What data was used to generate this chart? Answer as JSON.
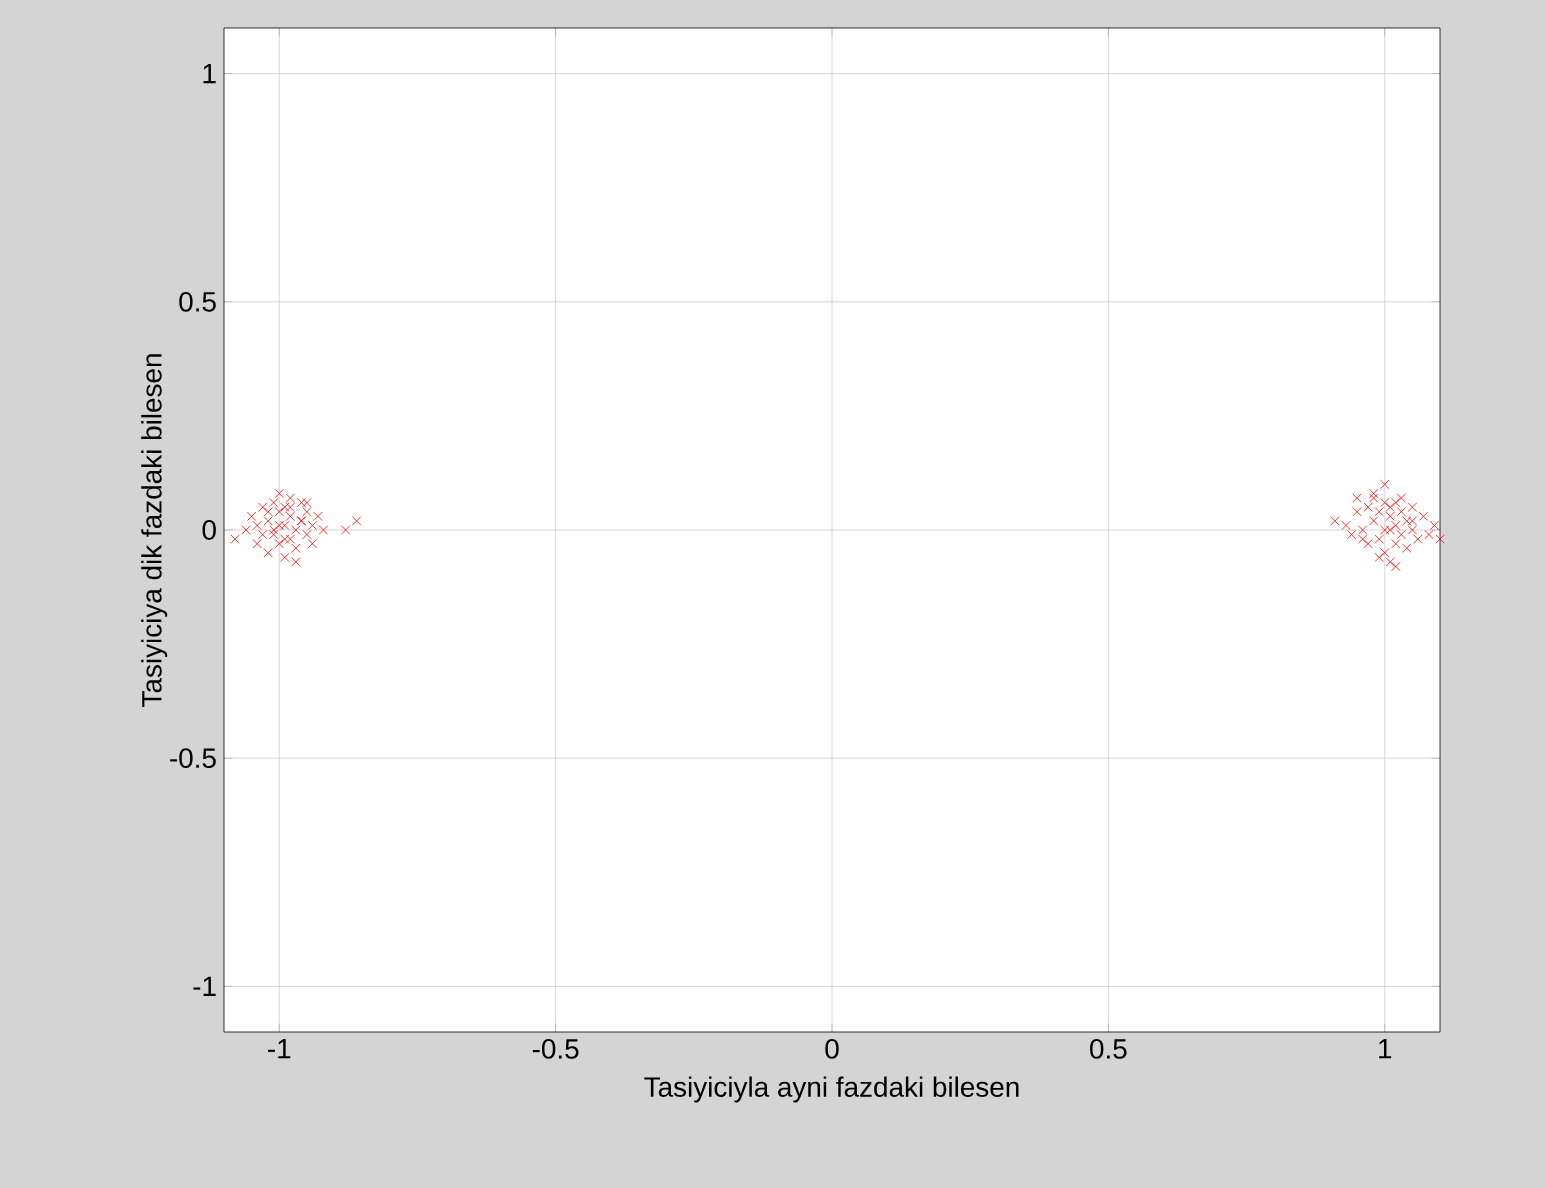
{
  "chart_data": {
    "type": "scatter",
    "xlabel": "Tasiyiciyla ayni fazdaki bilesen",
    "ylabel": "Tasiyiciya dik fazdaki bilesen",
    "xlim": [
      -1.1,
      1.1
    ],
    "ylim": [
      -1.1,
      1.1
    ],
    "xticks": [
      -1,
      -0.5,
      0,
      0.5,
      1
    ],
    "yticks": [
      -1,
      -0.5,
      0,
      0.5,
      1
    ],
    "grid": true,
    "marker": "cross",
    "series": [
      {
        "color": "#ff0000",
        "x": [
          -1.08,
          -1.06,
          -1.05,
          -1.04,
          -1.03,
          -1.03,
          -1.02,
          -1.02,
          -1.01,
          -1.01,
          -1.0,
          -1.0,
          -1.0,
          -0.99,
          -0.99,
          -0.99,
          -0.98,
          -0.98,
          -0.98,
          -0.97,
          -0.97,
          -0.96,
          -0.96,
          -0.95,
          -0.95,
          -0.94,
          -0.94,
          -0.93,
          -0.92,
          -1.0,
          -0.97,
          -0.99,
          -1.02,
          -0.96,
          -0.88,
          -0.86,
          -1.01,
          -0.98,
          -1.04,
          -0.95
        ],
        "values": [
          -0.02,
          0.0,
          0.03,
          -0.03,
          0.05,
          -0.01,
          0.02,
          -0.05,
          0.06,
          0.0,
          -0.03,
          0.04,
          0.08,
          0.01,
          -0.06,
          0.05,
          -0.02,
          0.03,
          0.07,
          0.0,
          -0.04,
          0.02,
          0.06,
          -0.01,
          0.04,
          0.01,
          -0.03,
          0.03,
          0.0,
          0.01,
          -0.07,
          -0.02,
          0.04,
          0.02,
          0.0,
          0.02,
          -0.01,
          0.05,
          0.01,
          0.06
        ]
      },
      {
        "color": "#ff0000",
        "x": [
          0.91,
          0.93,
          0.94,
          0.95,
          0.96,
          0.97,
          0.97,
          0.98,
          0.98,
          0.99,
          0.99,
          1.0,
          1.0,
          1.0,
          1.01,
          1.01,
          1.02,
          1.02,
          1.02,
          1.03,
          1.03,
          1.04,
          1.04,
          1.05,
          1.05,
          1.06,
          1.07,
          1.08,
          1.09,
          1.0,
          0.99,
          1.01,
          1.03,
          0.96,
          1.02,
          0.98,
          1.05,
          1.1,
          1.01,
          0.95
        ],
        "values": [
          0.02,
          0.01,
          -0.01,
          0.04,
          0.0,
          0.05,
          -0.03,
          0.02,
          0.07,
          -0.02,
          0.04,
          0.1,
          0.0,
          -0.05,
          0.03,
          -0.07,
          0.06,
          0.01,
          -0.03,
          0.04,
          -0.01,
          0.02,
          -0.04,
          0.05,
          0.0,
          -0.02,
          0.03,
          -0.01,
          0.01,
          0.06,
          -0.06,
          0.0,
          0.07,
          -0.02,
          -0.08,
          0.08,
          0.02,
          -0.02,
          0.05,
          0.07
        ]
      }
    ]
  }
}
